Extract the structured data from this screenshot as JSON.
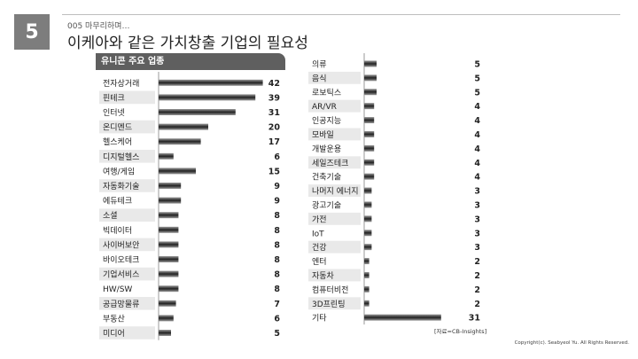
{
  "slide": {
    "number": "5",
    "section": "005 마무리하며…",
    "title": "이케아와 같은 가치창출 기업의 필요성"
  },
  "footer": {
    "source": "[자료=CB-Insights]",
    "copyright": "Copyright(c). Seabyeol Yu. All Rights Reserved."
  },
  "colors": {
    "bar_dark": "#222222",
    "bar_light": "#9a9a9a",
    "axis": "#9a9a9a",
    "row_shade": "#e9e9e9",
    "header": "#5f5f5f"
  },
  "chart_data": [
    {
      "type": "bar",
      "orientation": "horizontal",
      "title": "유니콘 주요 업종",
      "categories": [
        "전자상거래",
        "핀테크",
        "인터넷",
        "온디멘드",
        "헬스케어",
        "디지털헬스",
        "여행/게임",
        "자동화기술",
        "에듀테크",
        "소셜",
        "빅데이터",
        "사이버보안",
        "바이오테크",
        "기업서비스",
        "HW/SW",
        "공급망물류",
        "부동산",
        "미디어"
      ],
      "values": [
        42,
        39,
        31,
        20,
        17,
        6,
        15,
        9,
        9,
        8,
        8,
        8,
        8,
        8,
        8,
        7,
        6,
        5
      ],
      "xlim": [
        0,
        45
      ]
    },
    {
      "type": "bar",
      "orientation": "horizontal",
      "title": "",
      "categories": [
        "의류",
        "음식",
        "로보틱스",
        "AR/VR",
        "인공지능",
        "모바일",
        "개발운용",
        "세일즈테크",
        "건축기술",
        "나머지 에너지",
        "광고기술",
        "가전",
        "IoT",
        "건강",
        "엔터",
        "자동차",
        "컴퓨터비전",
        "3D프린팅",
        "기타"
      ],
      "values": [
        5,
        5,
        5,
        4,
        4,
        4,
        4,
        4,
        4,
        3,
        3,
        3,
        3,
        3,
        2,
        2,
        2,
        2,
        31
      ],
      "xlim": [
        0,
        45
      ]
    }
  ]
}
